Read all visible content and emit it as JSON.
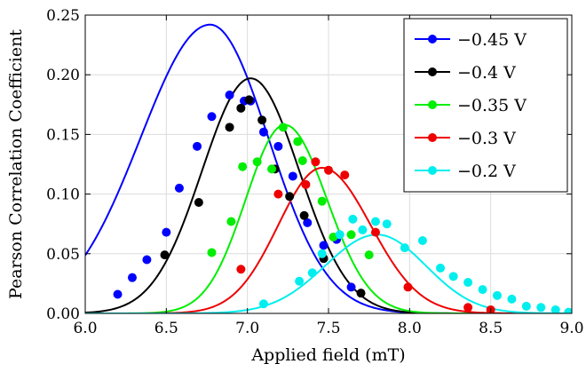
{
  "chart_data": {
    "type": "scatter",
    "xlabel": "Applied field (mT)",
    "ylabel": "Pearson Correlation Coefficient",
    "xlim": [
      6.0,
      9.0
    ],
    "ylim": [
      0.0,
      0.25
    ],
    "xticks": [
      6.0,
      6.5,
      7.0,
      7.5,
      8.0,
      8.5,
      9.0
    ],
    "xtick_labels": [
      "6.0",
      "6.5",
      "7.0",
      "7.5",
      "8.0",
      "8.5",
      "9.0"
    ],
    "yticks": [
      0.0,
      0.05,
      0.1,
      0.15,
      0.2,
      0.25
    ],
    "ytick_labels": [
      "0.00",
      "0.05",
      "0.10",
      "0.15",
      "0.20",
      "0.25"
    ],
    "grid": true,
    "legend_position": "top-right",
    "series": [
      {
        "name": "−0.45 V",
        "color": "#0000ff",
        "points": [
          [
            6.2,
            0.016
          ],
          [
            6.29,
            0.03
          ],
          [
            6.38,
            0.045
          ],
          [
            6.5,
            0.068
          ],
          [
            6.58,
            0.105
          ],
          [
            6.69,
            0.14
          ],
          [
            6.78,
            0.165
          ],
          [
            6.89,
            0.183
          ],
          [
            6.98,
            0.178
          ],
          [
            7.02,
            0.178
          ],
          [
            7.1,
            0.152
          ],
          [
            7.19,
            0.14
          ],
          [
            7.28,
            0.115
          ],
          [
            7.37,
            0.076
          ],
          [
            7.47,
            0.057
          ],
          [
            7.55,
            0.062
          ],
          [
            7.64,
            0.022
          ]
        ],
        "fit": {
          "peak_x": 6.77,
          "peak_y": 0.242,
          "sigma_left": 0.43,
          "sigma_right": 0.36
        }
      },
      {
        "name": "−0.4 V",
        "color": "#000000",
        "points": [
          [
            6.49,
            0.049
          ],
          [
            6.7,
            0.093
          ],
          [
            6.89,
            0.156
          ],
          [
            6.96,
            0.172
          ],
          [
            7.01,
            0.179
          ],
          [
            7.09,
            0.162
          ],
          [
            7.17,
            0.121
          ],
          [
            7.26,
            0.098
          ],
          [
            7.35,
            0.082
          ],
          [
            7.47,
            0.046
          ],
          [
            7.7,
            0.017
          ]
        ],
        "fit": {
          "peak_x": 7.02,
          "peak_y": 0.197,
          "sigma_left": 0.3,
          "sigma_right": 0.3
        }
      },
      {
        "name": "−0.35 V",
        "color": "#00ee00",
        "points": [
          [
            6.78,
            0.051
          ],
          [
            6.9,
            0.077
          ],
          [
            6.97,
            0.123
          ],
          [
            7.06,
            0.127
          ],
          [
            7.15,
            0.121
          ],
          [
            7.22,
            0.156
          ],
          [
            7.31,
            0.144
          ],
          [
            7.34,
            0.128
          ],
          [
            7.46,
            0.094
          ],
          [
            7.53,
            0.064
          ],
          [
            7.64,
            0.066
          ],
          [
            7.75,
            0.049
          ]
        ],
        "fit": {
          "peak_x": 7.23,
          "peak_y": 0.158,
          "sigma_left": 0.24,
          "sigma_right": 0.26
        }
      },
      {
        "name": "−0.3 V",
        "color": "#ee0000",
        "points": [
          [
            6.96,
            0.037
          ],
          [
            7.19,
            0.1
          ],
          [
            7.36,
            0.108
          ],
          [
            7.42,
            0.127
          ],
          [
            7.5,
            0.12
          ],
          [
            7.6,
            0.116
          ],
          [
            7.79,
            0.068
          ],
          [
            7.99,
            0.022
          ],
          [
            8.36,
            0.005
          ],
          [
            8.5,
            0.003
          ]
        ],
        "fit": {
          "peak_x": 7.46,
          "peak_y": 0.122,
          "sigma_left": 0.27,
          "sigma_right": 0.3
        }
      },
      {
        "name": "−0.2 V",
        "color": "#00eeee",
        "points": [
          [
            7.1,
            0.008
          ],
          [
            7.32,
            0.027
          ],
          [
            7.4,
            0.034
          ],
          [
            7.46,
            0.05
          ],
          [
            7.57,
            0.066
          ],
          [
            7.65,
            0.079
          ],
          [
            7.71,
            0.07
          ],
          [
            7.79,
            0.077
          ],
          [
            7.86,
            0.075
          ],
          [
            7.97,
            0.055
          ],
          [
            8.08,
            0.061
          ],
          [
            8.19,
            0.038
          ],
          [
            8.27,
            0.031
          ],
          [
            8.36,
            0.026
          ],
          [
            8.45,
            0.02
          ],
          [
            8.54,
            0.015
          ],
          [
            8.63,
            0.012
          ],
          [
            8.72,
            0.006
          ],
          [
            8.81,
            0.005
          ],
          [
            8.9,
            0.003
          ],
          [
            8.98,
            0.001
          ]
        ],
        "fit": {
          "peak_x": 7.8,
          "peak_y": 0.066,
          "sigma_left": 0.32,
          "sigma_right": 0.3
        }
      }
    ]
  }
}
